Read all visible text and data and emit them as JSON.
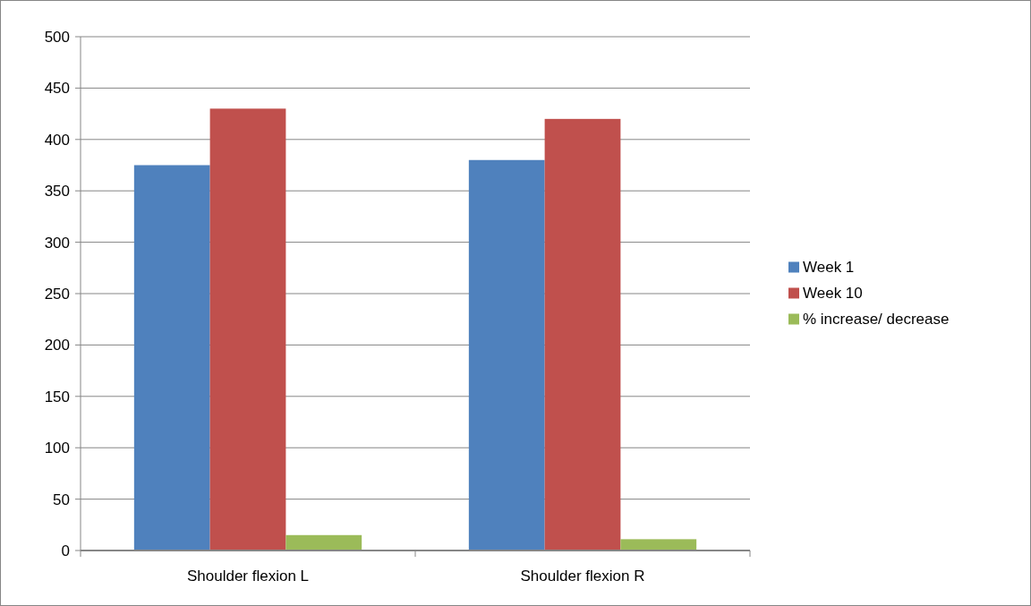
{
  "chart_data": {
    "type": "bar",
    "categories": [
      "Shoulder flexion L",
      "Shoulder flexion R"
    ],
    "series": [
      {
        "name": "Week 1",
        "color": "#4f81bd",
        "values": [
          375,
          380
        ]
      },
      {
        "name": "Week 10",
        "color": "#c0504d",
        "values": [
          430,
          420
        ]
      },
      {
        "name": "% increase/ decrease",
        "color": "#9bbb59",
        "values": [
          15,
          11
        ]
      }
    ],
    "ylim": [
      0,
      500
    ],
    "yticks": [
      0,
      50,
      100,
      150,
      200,
      250,
      300,
      350,
      400,
      450,
      500
    ],
    "grid": "y",
    "legend": "right"
  }
}
